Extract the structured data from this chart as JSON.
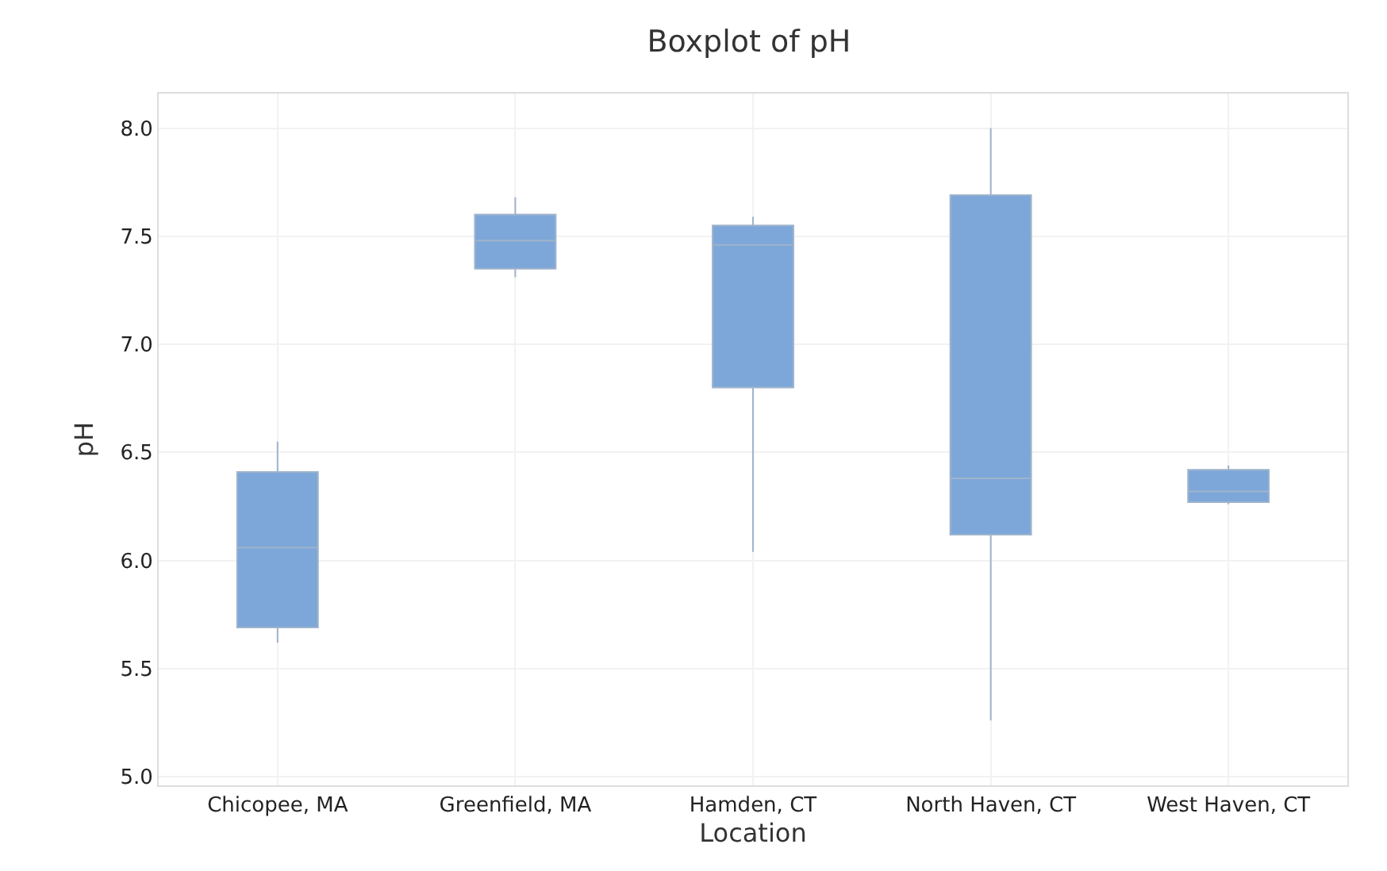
{
  "chart_data": {
    "type": "box",
    "title": "Boxplot of pH",
    "xlabel": "Location",
    "ylabel": "pH",
    "categories": [
      "Chicopee, MA",
      "Greenfield, MA",
      "Hamden, CT",
      "North Haven, CT",
      "West Haven, CT"
    ],
    "series": [
      {
        "color": "#7da7d9",
        "boxes": [
          {
            "low": 5.62,
            "q1": 5.69,
            "median": 6.06,
            "q3": 6.41,
            "high": 6.55
          },
          {
            "low": 7.31,
            "q1": 7.35,
            "median": 7.48,
            "q3": 7.6,
            "high": 7.68
          },
          {
            "low": 6.04,
            "q1": 6.8,
            "median": 7.46,
            "q3": 7.55,
            "high": 7.59
          },
          {
            "low": 5.26,
            "q1": 6.12,
            "median": 6.38,
            "q3": 7.69,
            "high": 8.0
          },
          {
            "low": 6.26,
            "q1": 6.27,
            "median": 6.32,
            "q3": 6.42,
            "high": 6.44
          }
        ]
      }
    ],
    "ylim": [
      4.96,
      8.16
    ],
    "yticks": [
      {
        "value": 5,
        "label": "5.0"
      },
      5.5,
      {
        "value": 6,
        "label": "6.0"
      },
      6.5,
      {
        "value": 7,
        "label": "7.0"
      },
      7.5,
      {
        "value": 8,
        "label": "8.0"
      }
    ],
    "grid": true,
    "legend": false
  }
}
